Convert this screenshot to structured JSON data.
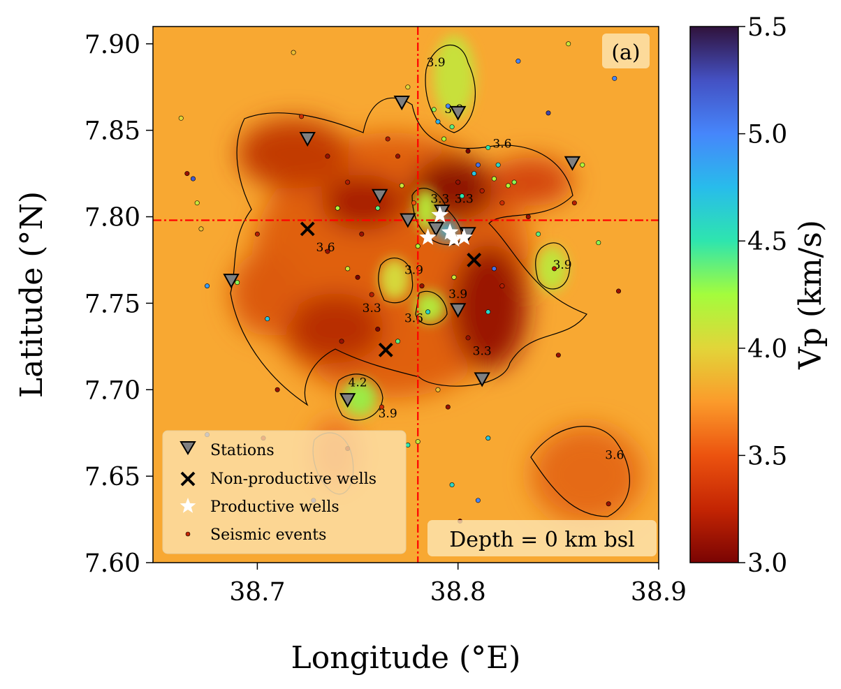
{
  "chart_data": {
    "type": "scatter",
    "panel_label": "(a)",
    "depth_label": "Depth = 0 km bsl",
    "xlabel": "Longitude (°E)",
    "ylabel": "Latitude (°N)",
    "xlim": [
      38.648,
      38.9
    ],
    "ylim": [
      7.6,
      7.91
    ],
    "xticks": [
      "38.7",
      "38.8",
      "38.9"
    ],
    "xtick_values": [
      38.7,
      38.8,
      38.9
    ],
    "yticks": [
      "7.60",
      "7.65",
      "7.70",
      "7.75",
      "7.80",
      "7.85",
      "7.90"
    ],
    "ytick_values": [
      7.6,
      7.65,
      7.7,
      7.75,
      7.8,
      7.85,
      7.9
    ],
    "colorbar": {
      "label": "Vp (km/s)",
      "range": [
        3.0,
        5.5
      ],
      "ticks": [
        "3.0",
        "3.5",
        "4.0",
        "4.5",
        "5.0",
        "5.5"
      ],
      "tick_values": [
        3.0,
        3.5,
        4.0,
        4.5,
        5.0,
        5.5
      ],
      "colormap": "turbo"
    },
    "legend": {
      "placement": "lower-left",
      "entries": [
        "Stations",
        "Non-productive wells",
        "Productive wells",
        "Seismic events"
      ]
    },
    "crosshair": {
      "lon": 38.78,
      "lat": 7.798,
      "color": "#ff0000"
    },
    "stations": [
      [
        38.772,
        7.866
      ],
      [
        38.8,
        7.86
      ],
      [
        38.725,
        7.845
      ],
      [
        38.857,
        7.831
      ],
      [
        38.761,
        7.812
      ],
      [
        38.775,
        7.798
      ],
      [
        38.792,
        7.803
      ],
      [
        38.789,
        7.793
      ],
      [
        38.805,
        7.79
      ],
      [
        38.687,
        7.763
      ],
      [
        38.8,
        7.746
      ],
      [
        38.812,
        7.706
      ],
      [
        38.745,
        7.694
      ]
    ],
    "non_productive_wells": [
      [
        38.725,
        7.793
      ],
      [
        38.808,
        7.775
      ],
      [
        38.764,
        7.723
      ]
    ],
    "productive_wells": [
      [
        38.791,
        7.801
      ],
      [
        38.785,
        7.788
      ],
      [
        38.796,
        7.791
      ],
      [
        38.798,
        7.787
      ],
      [
        38.803,
        7.788
      ]
    ],
    "seismic_events": [
      [
        38.662,
        7.857,
        4.0
      ],
      [
        38.665,
        7.825,
        3.1
      ],
      [
        38.668,
        7.822,
        5.2
      ],
      [
        38.67,
        7.808,
        4.1
      ],
      [
        38.672,
        7.793,
        3.9
      ],
      [
        38.675,
        7.76,
        4.9
      ],
      [
        38.69,
        7.762,
        4.3
      ],
      [
        38.7,
        7.79,
        3.2
      ],
      [
        38.705,
        7.741,
        4.7
      ],
      [
        38.71,
        7.7,
        3.1
      ],
      [
        38.718,
        7.895,
        3.9
      ],
      [
        38.722,
        7.858,
        3.3
      ],
      [
        38.735,
        7.835,
        3.1
      ],
      [
        38.745,
        7.82,
        3.2
      ],
      [
        38.74,
        7.805,
        4.2
      ],
      [
        38.735,
        7.78,
        3.1
      ],
      [
        38.745,
        7.77,
        4.1
      ],
      [
        38.75,
        7.765,
        3.0
      ],
      [
        38.752,
        7.79,
        3.1
      ],
      [
        38.757,
        7.755,
        3.2
      ],
      [
        38.76,
        7.805,
        4.4
      ],
      [
        38.765,
        7.845,
        3.2
      ],
      [
        38.77,
        7.835,
        3.1
      ],
      [
        38.772,
        7.818,
        4.1
      ],
      [
        38.775,
        7.875,
        4.0
      ],
      [
        38.778,
        7.808,
        3.5
      ],
      [
        38.78,
        7.783,
        4.2
      ],
      [
        38.782,
        7.76,
        3.1
      ],
      [
        38.785,
        7.745,
        4.6
      ],
      [
        38.788,
        7.862,
        4.3
      ],
      [
        38.79,
        7.855,
        4.8
      ],
      [
        38.793,
        7.845,
        4.2
      ],
      [
        38.795,
        7.864,
        5.0
      ],
      [
        38.797,
        7.852,
        4.4
      ],
      [
        38.8,
        7.82,
        3.1
      ],
      [
        38.802,
        7.812,
        4.5
      ],
      [
        38.805,
        7.838,
        3.0
      ],
      [
        38.808,
        7.825,
        4.7
      ],
      [
        38.81,
        7.83,
        5.1
      ],
      [
        38.812,
        7.815,
        3.2
      ],
      [
        38.815,
        7.84,
        4.5
      ],
      [
        38.818,
        7.822,
        4.2
      ],
      [
        38.82,
        7.83,
        4.6
      ],
      [
        38.822,
        7.808,
        3.3
      ],
      [
        38.825,
        7.818,
        4.2
      ],
      [
        38.828,
        7.82,
        4.3
      ],
      [
        38.83,
        7.89,
        5.0
      ],
      [
        38.835,
        7.8,
        3.1
      ],
      [
        38.84,
        7.79,
        4.4
      ],
      [
        38.845,
        7.86,
        5.3
      ],
      [
        38.848,
        7.77,
        3.2
      ],
      [
        38.85,
        7.72,
        3.1
      ],
      [
        38.855,
        7.9,
        4.1
      ],
      [
        38.858,
        7.808,
        3.2
      ],
      [
        38.862,
        7.83,
        4.2
      ],
      [
        38.87,
        7.785,
        4.3
      ],
      [
        38.878,
        7.88,
        5.0
      ],
      [
        38.88,
        7.757,
        3.1
      ],
      [
        38.875,
        7.634,
        3.1
      ],
      [
        38.815,
        7.672,
        4.7
      ],
      [
        38.81,
        7.636,
        5.0
      ],
      [
        38.801,
        7.624,
        3.0
      ],
      [
        38.797,
        7.645,
        4.6
      ],
      [
        38.79,
        7.7,
        3.9
      ],
      [
        38.795,
        7.69,
        3.1
      ],
      [
        38.78,
        7.67,
        4.1
      ],
      [
        38.775,
        7.668,
        4.5
      ],
      [
        38.762,
        7.69,
        3.3
      ],
      [
        38.745,
        7.666,
        3.1
      ],
      [
        38.728,
        7.636,
        5.2
      ],
      [
        38.703,
        7.672,
        3.2
      ],
      [
        38.675,
        7.674,
        5.1
      ],
      [
        38.76,
        7.735,
        3.0
      ],
      [
        38.77,
        7.728,
        4.4
      ],
      [
        38.805,
        7.73,
        3.1
      ],
      [
        38.815,
        7.745,
        4.6
      ],
      [
        38.822,
        7.76,
        3.2
      ],
      [
        38.818,
        7.77,
        5.1
      ],
      [
        38.798,
        7.765,
        4.1
      ],
      [
        38.742,
        7.728,
        3.1
      ]
    ],
    "contour_labels": [
      {
        "text": "3.9",
        "lon": 38.789,
        "lat": 7.887
      },
      {
        "text": "3.9",
        "lon": 38.798,
        "lat": 7.86
      },
      {
        "text": "3.6",
        "lon": 38.822,
        "lat": 7.84
      },
      {
        "text": "3.3",
        "lon": 38.791,
        "lat": 7.808
      },
      {
        "text": "3.3",
        "lon": 38.803,
        "lat": 7.808
      },
      {
        "text": "3.6",
        "lon": 38.734,
        "lat": 7.78
      },
      {
        "text": "3.9",
        "lon": 38.778,
        "lat": 7.767
      },
      {
        "text": "3.3",
        "lon": 38.757,
        "lat": 7.745
      },
      {
        "text": "3.9",
        "lon": 38.8,
        "lat": 7.753
      },
      {
        "text": "3.6",
        "lon": 38.778,
        "lat": 7.739
      },
      {
        "text": "3.3",
        "lon": 38.812,
        "lat": 7.72
      },
      {
        "text": "3.9",
        "lon": 38.852,
        "lat": 7.77
      },
      {
        "text": "4.2",
        "lon": 38.75,
        "lat": 7.702
      },
      {
        "text": "3.9",
        "lon": 38.765,
        "lat": 7.684
      },
      {
        "text": "3.6",
        "lon": 38.878,
        "lat": 7.66
      }
    ]
  }
}
